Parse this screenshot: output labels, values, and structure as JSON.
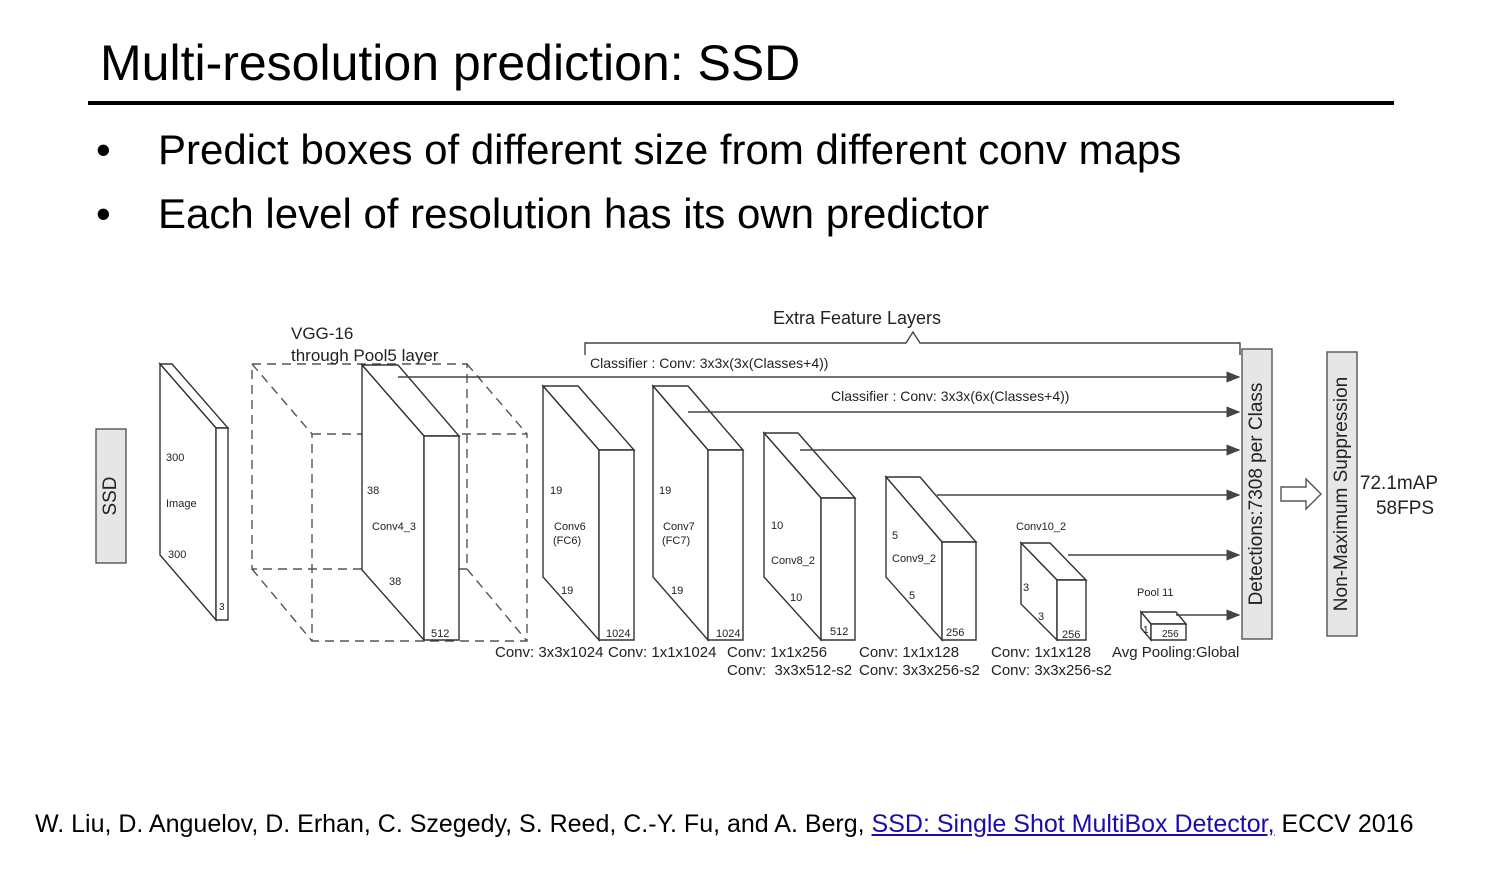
{
  "slide": {
    "title": "Multi-resolution prediction: SSD",
    "bullets": [
      "Predict boxes of different size from different conv maps",
      "Each level of resolution has its own predictor"
    ],
    "citation": {
      "authors": "W. Liu, D. Anguelov, D. Erhan, C. Szegedy, S. Reed, C.-Y. Fu, and A. Berg,",
      "link_text": "SSD: Single Shot MultiBox Detector,",
      "venue": "ECCV 2016"
    }
  },
  "diagram": {
    "ssd_label": "SSD",
    "vgg_line1": "VGG-16",
    "vgg_line2": "through Pool5 layer",
    "extra_layers": "Extra Feature Layers",
    "classifier1": "Classifier : Conv: 3x3x(3x(Classes+4))",
    "classifier2": "Classifier : Conv: 3x3x(6x(Classes+4))",
    "detections": "Detections:7308  per Class",
    "nms": "Non-Maximum Suppression",
    "result_map": "72.1mAP",
    "result_fps": "58FPS",
    "blocks": [
      {
        "name": "Image",
        "labels": [
          "300",
          "300",
          "3"
        ]
      },
      {
        "name": "Conv4_3",
        "labels": [
          "38",
          "38",
          "512"
        ]
      },
      {
        "name": "Conv6",
        "name2": "(FC6)",
        "labels": [
          "19",
          "19",
          "1024"
        ]
      },
      {
        "name": "Conv7",
        "name2": "(FC7)",
        "labels": [
          "19",
          "19",
          "1024"
        ]
      },
      {
        "name": "Conv8_2",
        "labels": [
          "10",
          "10",
          "512"
        ]
      },
      {
        "name": "Conv9_2",
        "labels": [
          "5",
          "5",
          "256"
        ]
      },
      {
        "name": "Conv10_2",
        "labels": [
          "3",
          "3",
          "256"
        ]
      },
      {
        "name": "Pool 11",
        "labels": [
          "1",
          "256"
        ]
      }
    ],
    "op_labels": [
      "Conv: 3x3x1024",
      "Conv: 1x1x1024",
      "Conv: 1x1x256",
      "Conv:  3x3x512-s2",
      "Conv: 1x1x128",
      "Conv: 3x3x256-s2",
      "Conv: 1x1x128",
      "Conv: 3x3x256-s2",
      "Avg Pooling:Global"
    ]
  }
}
